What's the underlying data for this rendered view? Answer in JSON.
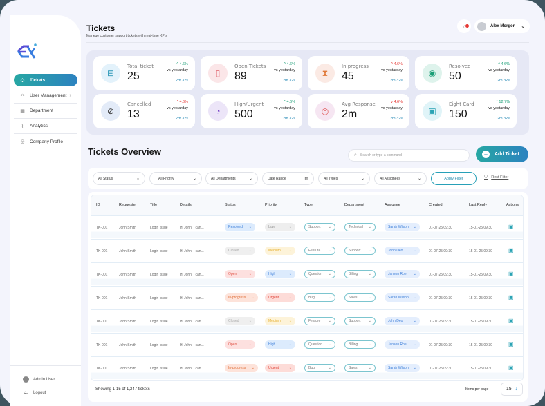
{
  "app": {
    "logo_alt": "EX logo"
  },
  "sidebar": {
    "items": [
      {
        "label": "Tickets",
        "icon": "ticket-icon",
        "active": true
      },
      {
        "label": "User Management",
        "icon": "users-icon",
        "has_submenu": true
      },
      {
        "label": "Department",
        "icon": "building-icon"
      },
      {
        "label": "Analytics",
        "icon": "chart-icon"
      },
      {
        "label": "Company Profile",
        "icon": "profile-icon"
      }
    ],
    "footer": {
      "user_label": "Admin User",
      "logout_label": "Logout"
    }
  },
  "header": {
    "title": "Tickets",
    "subtitle": "Manege customer support tickets with real-time KPIs",
    "notification_icon": "bell-icon",
    "user_name": "Alex Morgon"
  },
  "kpis": [
    {
      "label": "Total ticket",
      "value": "25",
      "change": "^ 4.6%",
      "dir": "up",
      "vs": "vs yestarday",
      "time": "2m 32s",
      "icon": "ticket-icon",
      "icon_bg": "#e3f2fb",
      "icon_color": "#2a96b6"
    },
    {
      "label": "Open Tickets",
      "value": "89",
      "change": "^ 4.6%",
      "dir": "up",
      "vs": "vs yestarday",
      "time": "2m 32s",
      "icon": "open-ticket-icon",
      "icon_bg": "#fbe6e8",
      "icon_color": "#e0606a"
    },
    {
      "label": "In progress",
      "value": "45",
      "change": "^ 4.6%",
      "dir": "down",
      "vs": "vs yestarday",
      "time": "2m 32s",
      "icon": "hourglass-icon",
      "icon_bg": "#fbeae4",
      "icon_color": "#e07a3a"
    },
    {
      "label": "Resolved",
      "value": "50",
      "change": "^ 4.6%",
      "dir": "up",
      "vs": "vs yestarday",
      "time": "2m 32s",
      "icon": "resolved-icon",
      "icon_bg": "#def3ec",
      "icon_color": "#1a9e76"
    },
    {
      "label": "Cancelled",
      "value": "13",
      "change": "^ 4.6%",
      "dir": "down",
      "vs": "vs yestarday",
      "time": "2m 32s",
      "icon": "cancel-icon",
      "icon_bg": "#e3ebf8",
      "icon_color": "#333"
    },
    {
      "label": "High/Urgent",
      "value": "500",
      "change": "^ 4.6%",
      "dir": "up",
      "vs": "vs yestarday",
      "time": "2m 32s",
      "icon": "urgent-gauge-icon",
      "icon_bg": "#ece5f8",
      "icon_color": "#7a45c8"
    },
    {
      "label": "Avg Response",
      "value": "2m",
      "change": "v 4.6%",
      "dir": "down",
      "vs": "vs yestarday",
      "time": "2m 32s",
      "icon": "target-icon",
      "icon_bg": "#f6e6f2",
      "icon_color": "#e05a5a"
    },
    {
      "label": "Eight Card",
      "value": "150",
      "change": "^ 12.7%",
      "dir": "up",
      "vs": "vs yestarday",
      "time": "2m 32s",
      "icon": "lock-card-icon",
      "icon_bg": "#e0f4f8",
      "icon_color": "#2aa3b4"
    }
  ],
  "overview": {
    "title": "Tickets Overview",
    "search_placeholder": "Search or type a command",
    "add_button": "Add Ticket"
  },
  "filters": {
    "status": "All Status",
    "priority": "All Priority",
    "department": "All Departments",
    "date_range": "Date Range",
    "types": "All Types",
    "assignees": "All Assignees",
    "apply": "Apply Filter",
    "reset": "Rest Filter"
  },
  "table": {
    "columns": [
      "ID",
      "Requester",
      "Title",
      "Details",
      "Status",
      "Priority",
      "Type",
      "Department",
      "Assignee",
      "Created",
      "Last Reply",
      "Actions"
    ],
    "rows": [
      {
        "id": "TK-001",
        "requester": "John Smith",
        "title": "Login Issue",
        "details": "Hi John, I can...",
        "status": "Resolved",
        "priority": "Low",
        "type": "Support",
        "department": "Technical",
        "assignee": "Sarah Wilson",
        "created": "01-07-25 09:30",
        "last_reply": "15-01-25 09:30"
      },
      {
        "id": "TK-001",
        "requester": "John Smith",
        "title": "Login Issue",
        "details": "Hi John, I can...",
        "status": "Closed",
        "priority": "Medium",
        "type": "Feature",
        "department": "Support",
        "assignee": "John Deo",
        "created": "01-07-25 09:30",
        "last_reply": "15-01-25 09:30"
      },
      {
        "id": "TK-001",
        "requester": "John Smith",
        "title": "Login Issue",
        "details": "Hi John, I can...",
        "status": "Open",
        "priority": "High",
        "type": "Question",
        "department": "Billing",
        "assignee": "Janson Roe",
        "created": "01-07-25 09:30",
        "last_reply": "15-01-25 09:30"
      },
      {
        "id": "TK-001",
        "requester": "John Smith",
        "title": "Login Issue",
        "details": "Hi John, I can...",
        "status": "In-progress",
        "priority": "Urgent",
        "type": "Bug",
        "department": "Sales",
        "assignee": "Sarah Wilson",
        "created": "01-07-25 09:30",
        "last_reply": "15-01-25 09:30"
      },
      {
        "id": "TK-001",
        "requester": "John Smith",
        "title": "Login Issue",
        "details": "Hi John, I can...",
        "status": "Closed",
        "priority": "Medium",
        "type": "Feature",
        "department": "Support",
        "assignee": "John Deo",
        "created": "01-07-25 09:30",
        "last_reply": "15-01-25 09:30"
      },
      {
        "id": "TK-001",
        "requester": "John Smith",
        "title": "Login Issue",
        "details": "Hi John, I can...",
        "status": "Open",
        "priority": "High",
        "type": "Question",
        "department": "Billing",
        "assignee": "Janson Roe",
        "created": "01-07-25 09:30",
        "last_reply": "15-01-25 09:30"
      },
      {
        "id": "TK-001",
        "requester": "John Smith",
        "title": "Login Issue",
        "details": "Hi John, I can...",
        "status": "In-progress",
        "priority": "Urgent",
        "type": "Bug",
        "department": "Sales",
        "assignee": "Sarah Wilson",
        "created": "01-07-25 09:30",
        "last_reply": "15-01-25 09:30"
      }
    ],
    "showing": "Showing 1-15 of 1,247 tickets",
    "items_per_page_label": "Items per page :",
    "items_per_page": "15"
  },
  "pill_colors": {
    "Resolved": {
      "bg": "#dcebfd",
      "fg": "#3d7fd9"
    },
    "Closed": {
      "bg": "#efefef",
      "fg": "#aaaaaa"
    },
    "Open": {
      "bg": "#fde0df",
      "fg": "#e25b4f"
    },
    "In-progress": {
      "bg": "#fde3da",
      "fg": "#e0703a"
    },
    "Low": {
      "bg": "#eeeeee",
      "fg": "#999999"
    },
    "Medium": {
      "bg": "#fdf3d9",
      "fg": "#e6b030"
    },
    "High": {
      "bg": "#dcebfd",
      "fg": "#3d7fd9"
    },
    "Urgent": {
      "bg": "#fddcd8",
      "fg": "#e0453a"
    },
    "assignee": {
      "bg": "#e4eefd",
      "fg": "#3d7fd9"
    }
  }
}
